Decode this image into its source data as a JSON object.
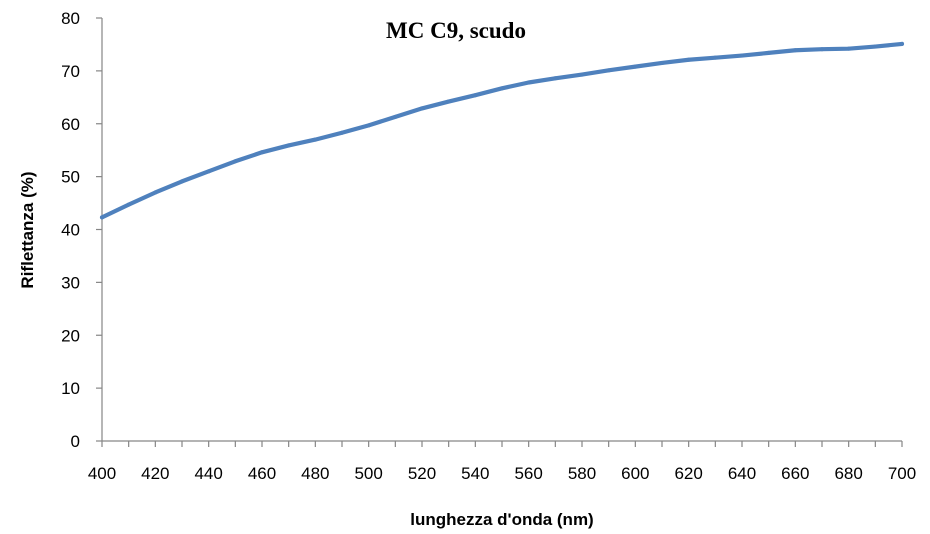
{
  "chart_data": {
    "type": "line",
    "title": "MC C9, scudo",
    "xlabel": "lunghezza d'onda (nm)",
    "ylabel": "Riflettanza (%)",
    "xlim": [
      400,
      700
    ],
    "ylim": [
      0,
      80
    ],
    "x_ticks": [
      "400",
      "420",
      "440",
      "460",
      "480",
      "500",
      "520",
      "540",
      "560",
      "580",
      "600",
      "620",
      "640",
      "660",
      "680",
      "700"
    ],
    "y_ticks": [
      "0",
      "10",
      "20",
      "30",
      "40",
      "50",
      "60",
      "70",
      "80"
    ],
    "grid": false,
    "legend": "none",
    "series": [
      {
        "color": "#4f81bd",
        "x": [
          400,
          410,
          420,
          430,
          440,
          450,
          460,
          470,
          480,
          490,
          500,
          510,
          520,
          530,
          540,
          550,
          560,
          570,
          580,
          590,
          600,
          610,
          620,
          630,
          640,
          650,
          660,
          670,
          680,
          690,
          700
        ],
        "y": [
          42.3,
          44.7,
          47.0,
          49.1,
          51.0,
          52.9,
          54.6,
          55.9,
          57.0,
          58.3,
          59.7,
          61.3,
          62.9,
          64.2,
          65.4,
          66.7,
          67.8,
          68.6,
          69.3,
          70.1,
          70.8,
          71.5,
          72.1,
          72.5,
          72.9,
          73.4,
          73.9,
          74.1,
          74.2,
          74.6,
          75.1
        ]
      }
    ]
  }
}
